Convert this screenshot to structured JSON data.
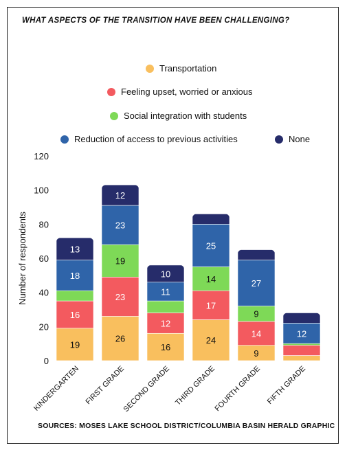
{
  "chart_data": {
    "type": "bar",
    "stacked": true,
    "title": "WHAT ASPECTS OF THE TRANSITION HAVE BEEN CHALLENGING?",
    "ylabel": "Number of respondents",
    "xlabel": "",
    "ylim": [
      0,
      120
    ],
    "yticks": [
      0,
      20,
      40,
      60,
      80,
      100,
      120
    ],
    "categories": [
      "KINDERGARTEN",
      "FIRST GRADE",
      "SECOND GRADE",
      "THIRD GRADE",
      "FOURTH GRADE",
      "FIFTH GRADE"
    ],
    "series": [
      {
        "name": "Transportation",
        "color": "#f9bf5e",
        "label_color": "#111111",
        "values": [
          19,
          26,
          16,
          24,
          9,
          3
        ]
      },
      {
        "name": "Feeling upset, worried or anxious",
        "color": "#f35a5f",
        "label_color": "#ffffff",
        "values": [
          16,
          23,
          12,
          17,
          14,
          6
        ]
      },
      {
        "name": "Social integration with students",
        "color": "#7ed957",
        "label_color": "#111111",
        "values": [
          6,
          19,
          7,
          14,
          9,
          1
        ]
      },
      {
        "name": "Reduction of access to previous activities",
        "color": "#2f64a9",
        "label_color": "#ffffff",
        "values": [
          18,
          23,
          11,
          25,
          27,
          12
        ]
      },
      {
        "name": "None",
        "color": "#262c6a",
        "label_color": "#ffffff",
        "values": [
          13,
          12,
          10,
          6,
          6,
          6
        ]
      }
    ],
    "data_labels": [
      [
        "19",
        "26",
        "16",
        "24",
        "9",
        ""
      ],
      [
        "16",
        "23",
        "12",
        "17",
        "14",
        ""
      ],
      [
        "",
        "19",
        "",
        "14",
        "9",
        ""
      ],
      [
        "18",
        "23",
        "11",
        "25",
        "27",
        "12"
      ],
      [
        "13",
        "12",
        "10",
        "",
        "",
        ""
      ]
    ],
    "grid": false,
    "legend_position": "top"
  },
  "source": "SOURCES: MOSES LAKE SCHOOL DISTRICT/COLUMBIA BASIN HERALD GRAPHIC"
}
